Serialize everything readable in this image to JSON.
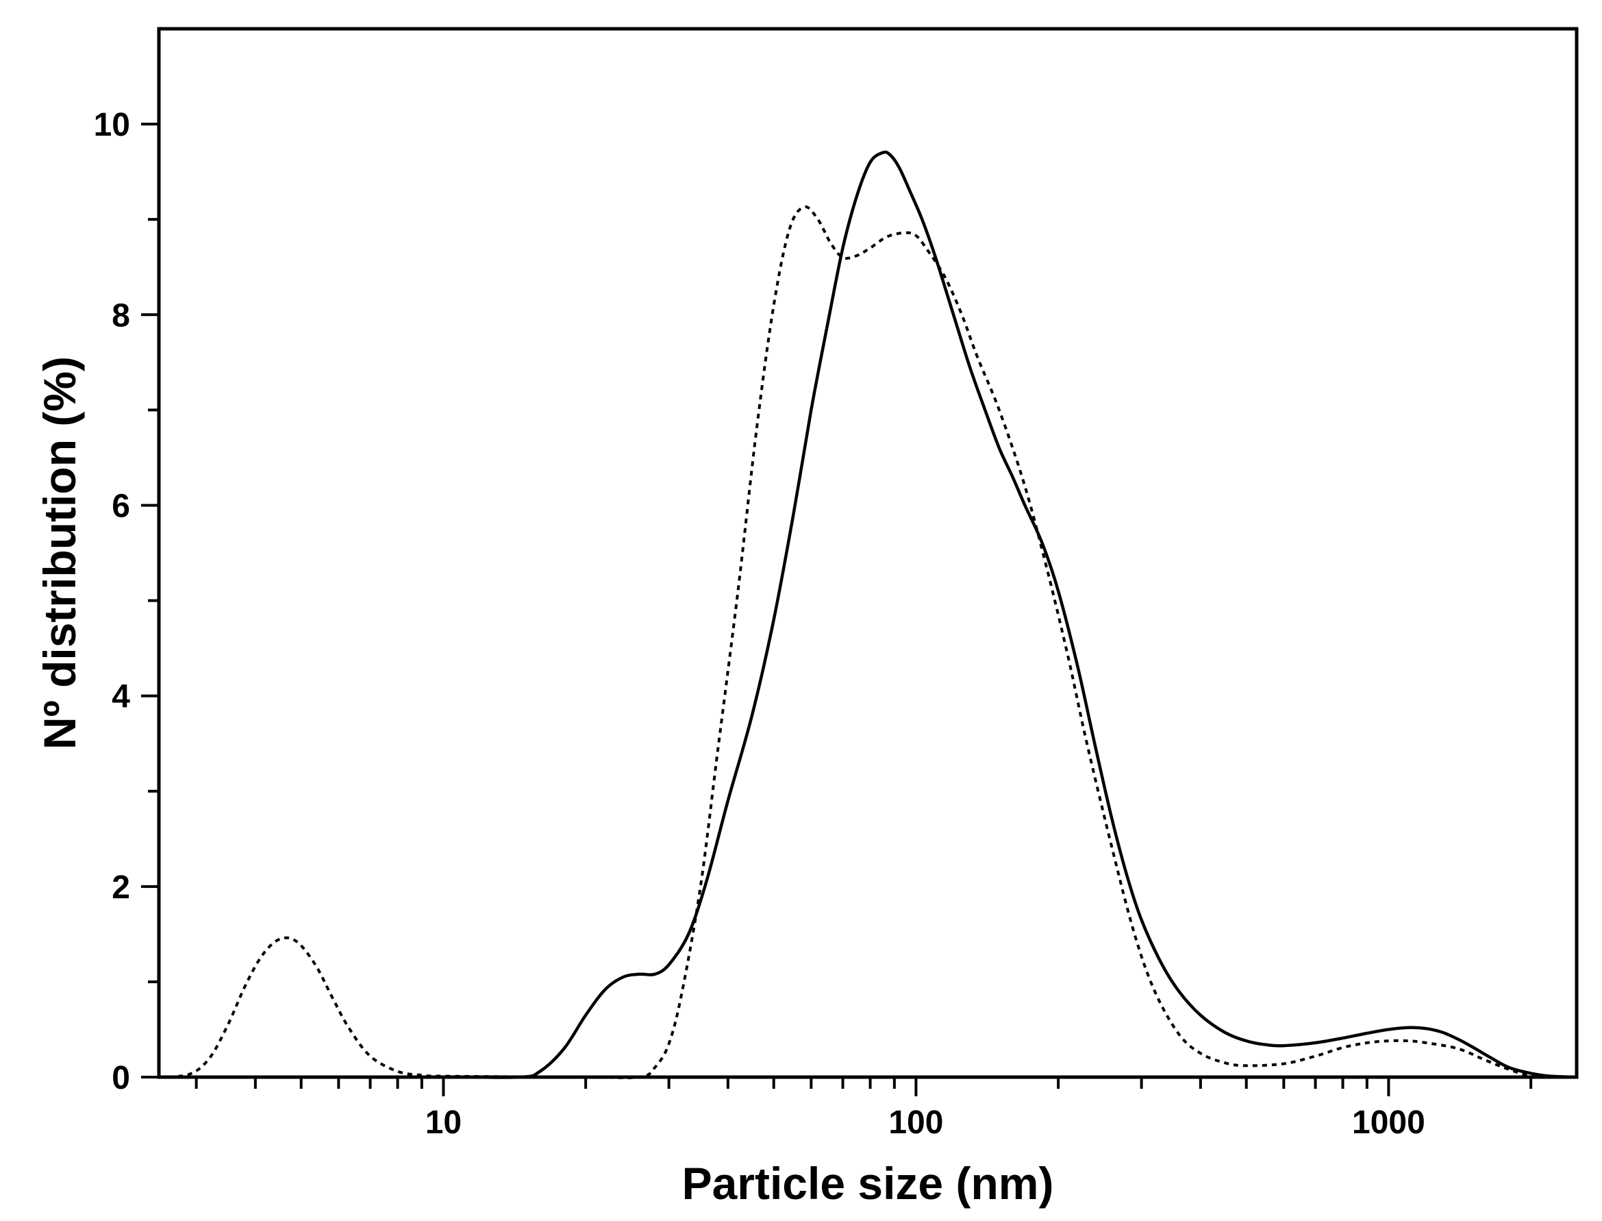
{
  "chart_data": {
    "type": "line",
    "xlabel": "Particle size (nm)",
    "ylabel": "Nº distribution (%)",
    "xscale": "log",
    "xlim": [
      2.5,
      2500
    ],
    "ylim": [
      0,
      11
    ],
    "xticks": [
      10,
      100,
      1000
    ],
    "xtick_labels": [
      "10",
      "100",
      "1000"
    ],
    "yticks": [
      0,
      2,
      4,
      6,
      8,
      10
    ],
    "ytick_labels": [
      "0",
      "2",
      "4",
      "6",
      "8",
      "10"
    ],
    "grid": false,
    "legend": "none",
    "series": [
      {
        "style": "solid",
        "color": "#000000",
        "x": [
          2.5,
          10,
          14.5,
          16,
          18,
          20,
          22,
          24,
          26,
          28,
          30,
          33,
          36,
          40,
          45,
          50,
          55,
          60,
          65,
          70,
          75,
          80,
          85,
          88,
          92,
          97,
          103,
          110,
          120,
          130,
          140,
          150,
          160,
          170,
          185,
          200,
          220,
          240,
          260,
          280,
          300,
          330,
          360,
          400,
          450,
          500,
          550,
          600,
          700,
          800,
          900,
          1000,
          1100,
          1200,
          1300,
          1400,
          1500,
          1650,
          1800,
          2000,
          2200,
          2500
        ],
        "y": [
          0.0,
          0.0,
          0.0,
          0.06,
          0.3,
          0.65,
          0.92,
          1.05,
          1.08,
          1.08,
          1.18,
          1.5,
          2.05,
          2.9,
          3.8,
          4.8,
          5.9,
          7.0,
          7.9,
          8.7,
          9.25,
          9.6,
          9.7,
          9.68,
          9.55,
          9.3,
          9.0,
          8.6,
          8.0,
          7.45,
          7.0,
          6.6,
          6.3,
          6.0,
          5.6,
          5.1,
          4.3,
          3.45,
          2.7,
          2.1,
          1.65,
          1.2,
          0.9,
          0.65,
          0.47,
          0.38,
          0.34,
          0.33,
          0.36,
          0.41,
          0.46,
          0.5,
          0.52,
          0.51,
          0.47,
          0.4,
          0.32,
          0.2,
          0.1,
          0.04,
          0.01,
          0.0
        ]
      },
      {
        "style": "dashed",
        "color": "#000000",
        "x": [
          2.5,
          2.9,
          3.2,
          3.5,
          3.8,
          4.1,
          4.4,
          4.7,
          5.0,
          5.4,
          5.8,
          6.3,
          7.0,
          8.0,
          9.0,
          10,
          20,
          26,
          28,
          30,
          32,
          35,
          38,
          42,
          46,
          50,
          54,
          58,
          62,
          66,
          70,
          75,
          80,
          87,
          95,
          100,
          105,
          115,
          125,
          135,
          150,
          170,
          190,
          210,
          230,
          260,
          290,
          320,
          360,
          400,
          450,
          500,
          600,
          700,
          800,
          900,
          1000,
          1100,
          1200,
          1400,
          1600,
          1800,
          2000,
          2500
        ],
        "y": [
          0.0,
          0.03,
          0.2,
          0.55,
          0.95,
          1.25,
          1.42,
          1.46,
          1.38,
          1.15,
          0.85,
          0.52,
          0.22,
          0.06,
          0.02,
          0.01,
          0.0,
          0.0,
          0.1,
          0.35,
          0.9,
          2.0,
          3.4,
          5.1,
          6.8,
          8.1,
          8.9,
          9.13,
          9.0,
          8.75,
          8.6,
          8.62,
          8.7,
          8.82,
          8.86,
          8.83,
          8.7,
          8.4,
          8.0,
          7.55,
          7.0,
          6.2,
          5.3,
          4.4,
          3.5,
          2.4,
          1.5,
          0.9,
          0.45,
          0.25,
          0.15,
          0.12,
          0.14,
          0.22,
          0.31,
          0.36,
          0.38,
          0.38,
          0.36,
          0.3,
          0.18,
          0.08,
          0.02,
          0.0
        ]
      }
    ]
  }
}
